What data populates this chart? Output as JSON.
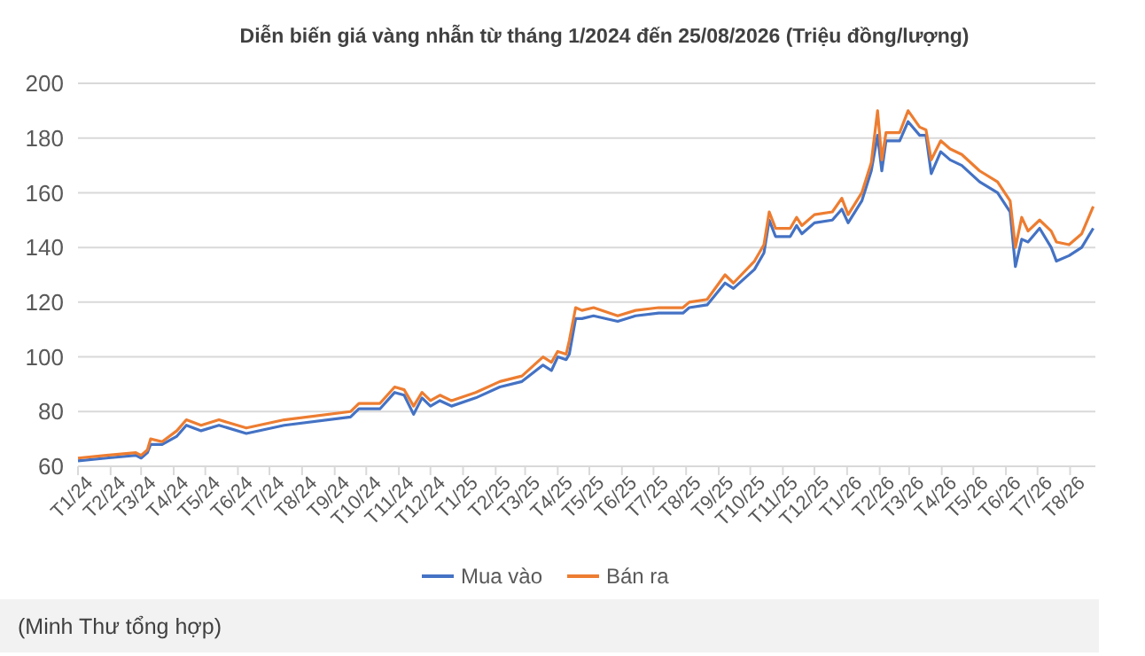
{
  "chart_data": {
    "type": "line",
    "title": "Diễn biến giá vàng nhẫn từ tháng 1/2024 đến 25/08/2026 (Triệu đồng/lượng)",
    "x": [
      "2024-01-01",
      "2024-01-28",
      "2024-02-25",
      "2024-03-01",
      "2024-03-07",
      "2024-03-10",
      "2024-03-21",
      "2024-04-04",
      "2024-04-13",
      "2024-04-27",
      "2024-05-14",
      "2024-06-09",
      "2024-07-15",
      "2024-09-16",
      "2024-09-24",
      "2024-10-14",
      "2024-10-28",
      "2024-11-06",
      "2024-11-15",
      "2024-11-23",
      "2024-12-01",
      "2024-12-10",
      "2024-12-21",
      "2025-01-13",
      "2025-02-05",
      "2025-02-26",
      "2025-03-18",
      "2025-03-26",
      "2025-04-01",
      "2025-04-09",
      "2025-04-12",
      "2025-04-18",
      "2025-04-24",
      "2025-05-05",
      "2025-05-28",
      "2025-06-14",
      "2025-07-06",
      "2025-07-29",
      "2025-08-04",
      "2025-08-21",
      "2025-09-07",
      "2025-09-15",
      "2025-10-05",
      "2025-10-14",
      "2025-10-19",
      "2025-10-25",
      "2025-11-08",
      "2025-11-14",
      "2025-11-19",
      "2025-12-01",
      "2025-12-18",
      "2025-12-27",
      "2026-01-02",
      "2026-01-15",
      "2026-01-24",
      "2026-01-30",
      "2026-02-03",
      "2026-02-07",
      "2026-02-20",
      "2026-02-28",
      "2026-03-11",
      "2026-03-17",
      "2026-03-22",
      "2026-03-31",
      "2026-04-09",
      "2026-04-20",
      "2026-05-07",
      "2026-05-24",
      "2026-06-05",
      "2026-06-10",
      "2026-06-16",
      "2026-06-22",
      "2026-07-03",
      "2026-07-14",
      "2026-07-19",
      "2026-07-31",
      "2026-08-12",
      "2026-08-23"
    ],
    "series": [
      {
        "name": "Mua vào",
        "color": "#4472c4",
        "values": [
          62,
          63,
          64,
          63,
          65,
          68,
          68,
          71,
          75,
          73,
          75,
          72,
          75,
          78,
          81,
          81,
          87,
          86,
          79,
          85,
          82,
          84,
          82,
          85,
          89,
          91,
          97,
          95,
          100,
          99,
          101,
          114,
          114,
          115,
          113,
          115,
          116,
          116,
          118,
          119,
          127,
          125,
          132,
          138,
          150,
          144,
          144,
          148,
          145,
          149,
          150,
          154,
          149,
          157,
          168,
          181,
          168,
          179,
          179,
          186,
          181,
          181,
          167,
          175,
          172,
          170,
          164,
          160,
          153,
          133,
          143,
          142,
          147,
          140,
          135,
          137,
          140,
          147
        ]
      },
      {
        "name": "Bán ra",
        "color": "#ed7d31",
        "values": [
          63,
          64,
          65,
          64,
          66,
          70,
          69,
          73,
          77,
          75,
          77,
          74,
          77,
          80,
          83,
          83,
          89,
          88,
          82,
          87,
          84,
          86,
          84,
          87,
          91,
          93,
          100,
          98,
          102,
          101,
          106,
          118,
          117,
          118,
          115,
          117,
          118,
          118,
          120,
          121,
          130,
          127,
          135,
          141,
          153,
          147,
          147,
          151,
          148,
          152,
          153,
          158,
          152,
          160,
          171,
          190,
          172,
          182,
          182,
          190,
          184,
          183,
          172,
          179,
          176,
          174,
          168,
          164,
          157,
          140,
          151,
          146,
          150,
          146,
          142,
          141,
          145,
          155
        ]
      }
    ],
    "xlim": [
      "2024-01-01",
      "2026-08-25"
    ],
    "xticks": [
      {
        "value": "2024-01",
        "label": "T1/24"
      },
      {
        "value": "2024-02",
        "label": "T2/24"
      },
      {
        "value": "2024-03",
        "label": "T3/24"
      },
      {
        "value": "2024-04",
        "label": "T4/24"
      },
      {
        "value": "2024-05",
        "label": "T5/24"
      },
      {
        "value": "2024-06",
        "label": "T6/24"
      },
      {
        "value": "2024-07",
        "label": "T7/24"
      },
      {
        "value": "2024-08",
        "label": "T8/24"
      },
      {
        "value": "2024-09",
        "label": "T9/24"
      },
      {
        "value": "2024-10",
        "label": "T10/24"
      },
      {
        "value": "2024-11",
        "label": "T11/24"
      },
      {
        "value": "2024-12",
        "label": "T12/24"
      },
      {
        "value": "2025-01",
        "label": "T1/25"
      },
      {
        "value": "2025-02",
        "label": "T2/25"
      },
      {
        "value": "2025-03",
        "label": "T3/25"
      },
      {
        "value": "2025-04",
        "label": "T4/25"
      },
      {
        "value": "2025-05",
        "label": "T5/25"
      },
      {
        "value": "2025-06",
        "label": "T6/25"
      },
      {
        "value": "2025-07",
        "label": "T7/25"
      },
      {
        "value": "2025-08",
        "label": "T8/25"
      },
      {
        "value": "2025-09",
        "label": "T9/25"
      },
      {
        "value": "2025-10",
        "label": "T10/25"
      },
      {
        "value": "2025-11",
        "label": "T11/25"
      },
      {
        "value": "2025-12",
        "label": "T12/25"
      },
      {
        "value": "2026-01",
        "label": "T1/26"
      },
      {
        "value": "2026-02",
        "label": "T2/26"
      },
      {
        "value": "2026-03",
        "label": "T3/26"
      },
      {
        "value": "2026-04",
        "label": "T4/26"
      },
      {
        "value": "2026-05",
        "label": "T5/26"
      },
      {
        "value": "2026-06",
        "label": "T6/26"
      },
      {
        "value": "2026-07",
        "label": "T7/26"
      },
      {
        "value": "2026-08",
        "label": "T8/26"
      }
    ],
    "ylim": [
      60,
      200
    ],
    "yticks": [
      60,
      80,
      100,
      120,
      140,
      160,
      180,
      200
    ],
    "grid": "y",
    "legend": "bottom",
    "marker": "none",
    "line_style": "solid",
    "annotations": [
      "(Minh Thư tổng hợp)"
    ]
  }
}
